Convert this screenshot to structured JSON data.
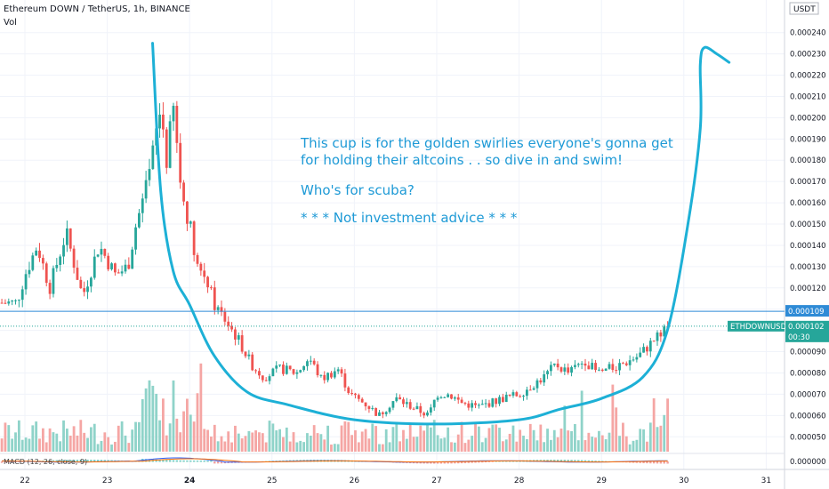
{
  "header": {
    "symbol_line": "Ethereum DOWN / TetherUS, 1h, BINANCE",
    "vol_label": "Vol",
    "currency": "USDT"
  },
  "annotation": {
    "line1": "This cup is for the golden swirlies everyone's gonna get",
    "line2": "for holding their altcoins . . so dive in and swim!",
    "line3": "Who's for scuba?",
    "line4": "* * * Not investment advice * * *"
  },
  "price_tags": {
    "line_value": "0.000109",
    "ticker": "ETHDOWNUSDT",
    "last_value": "0.000102",
    "countdown": "00:30"
  },
  "macd": {
    "label": "MACD (12, 26, close, 9)",
    "value": "0.000000"
  },
  "colors": {
    "up": "#26a69a",
    "down": "#ef5350",
    "drawing": "#1db0d6",
    "hline": "#2f8bd6",
    "text": "#131722"
  },
  "chart_data": {
    "type": "candlestick",
    "title": "Ethereum DOWN / TetherUS, 1h, BINANCE",
    "y_axis_unit": "USDT",
    "ylim": [
      4.3e-05,
      0.000252
    ],
    "y_ticks": [
      "0.000050",
      "0.000060",
      "0.000070",
      "0.000080",
      "0.000090",
      "0.000100",
      "0.000110",
      "0.000120",
      "0.000130",
      "0.000140",
      "0.000150",
      "0.000160",
      "0.000170",
      "0.000180",
      "0.000190",
      "0.000200",
      "0.000210",
      "0.000220",
      "0.000230",
      "0.000240"
    ],
    "x_ticks": [
      "22",
      "23",
      "24",
      "25",
      "26",
      "27",
      "28",
      "29",
      "30",
      "31"
    ],
    "horizontal_line": 0.000109,
    "last_price": 0.000102,
    "price_path": [
      [
        21.9,
        0.000113
      ],
      [
        22.0,
        0.000126
      ],
      [
        22.15,
        0.00014
      ],
      [
        22.3,
        0.00012
      ],
      [
        22.5,
        0.000146
      ],
      [
        22.7,
        0.000116
      ],
      [
        22.9,
        0.00014
      ],
      [
        23.1,
        0.000126
      ],
      [
        23.25,
        0.00013
      ],
      [
        23.35,
        0.00015
      ],
      [
        23.5,
        0.00017
      ],
      [
        23.58,
        0.00019
      ],
      [
        23.65,
        0.000205
      ],
      [
        23.72,
        0.00018
      ],
      [
        23.8,
        0.000205
      ],
      [
        23.9,
        0.000165
      ],
      [
        24.0,
        0.00015
      ],
      [
        24.1,
        0.00013
      ],
      [
        24.2,
        0.000125
      ],
      [
        24.3,
        0.000112
      ],
      [
        24.45,
        0.000104
      ],
      [
        24.6,
        9.5e-05
      ],
      [
        24.75,
        8.4e-05
      ],
      [
        24.9,
        7.8e-05
      ],
      [
        25.1,
        8.2e-05
      ],
      [
        25.3,
        8e-05
      ],
      [
        25.45,
        8.7e-05
      ],
      [
        25.6,
        7.7e-05
      ],
      [
        25.8,
        8.2e-05
      ],
      [
        25.95,
        7e-05
      ],
      [
        26.15,
        6.5e-05
      ],
      [
        26.3,
        6e-05
      ],
      [
        26.5,
        6.8e-05
      ],
      [
        26.7,
        6.4e-05
      ],
      [
        26.9,
        6e-05
      ],
      [
        27.0,
        7e-05
      ],
      [
        27.15,
        7e-05
      ],
      [
        27.3,
        6.6e-05
      ],
      [
        27.5,
        6.4e-05
      ],
      [
        27.65,
        6.6e-05
      ],
      [
        27.8,
        6.8e-05
      ],
      [
        28.0,
        7e-05
      ],
      [
        28.15,
        7.4e-05
      ],
      [
        28.3,
        7.8e-05
      ],
      [
        28.45,
        8.4e-05
      ],
      [
        28.6,
        8e-05
      ],
      [
        28.8,
        8.6e-05
      ],
      [
        28.95,
        8e-05
      ],
      [
        29.1,
        8.2e-05
      ],
      [
        29.3,
        8.5e-05
      ],
      [
        29.45,
        8.8e-05
      ],
      [
        29.6,
        9.4e-05
      ],
      [
        29.75,
        0.0001
      ],
      [
        29.82,
        0.000102
      ]
    ],
    "volume_scale": "relative",
    "drawing": {
      "type": "cup",
      "points": [
        [
          23.55,
          0.000235
        ],
        [
          23.65,
          0.000165
        ],
        [
          23.8,
          0.000128
        ],
        [
          24.0,
          0.000112
        ],
        [
          24.3,
          8.8e-05
        ],
        [
          24.7,
          7.1e-05
        ],
        [
          25.2,
          6.5e-05
        ],
        [
          26.0,
          5.8e-05
        ],
        [
          27.0,
          5.6e-05
        ],
        [
          28.0,
          5.8e-05
        ],
        [
          28.5,
          6.3e-05
        ],
        [
          29.0,
          6.8e-05
        ],
        [
          29.5,
          7.8e-05
        ],
        [
          29.8,
          0.0001
        ],
        [
          30.05,
          0.00015
        ],
        [
          30.2,
          0.000195
        ],
        [
          30.2,
          0.000225
        ],
        [
          30.25,
          0.000233
        ],
        [
          30.4,
          0.00023
        ],
        [
          30.55,
          0.000226
        ]
      ]
    }
  }
}
